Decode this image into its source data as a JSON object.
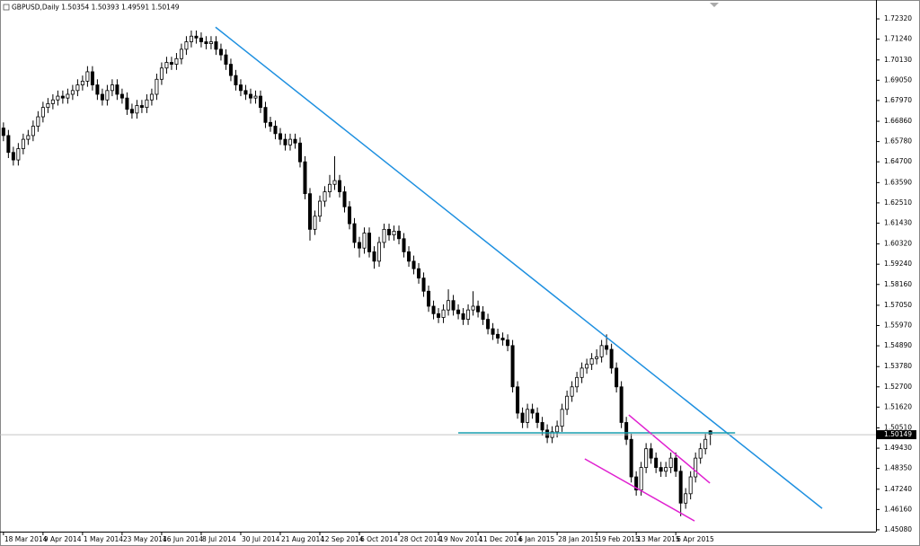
{
  "chart_data": {
    "type": "candlestick",
    "title": "GBPUSD,Daily",
    "categories": [
      "18 Mar 2014",
      null,
      null,
      null,
      null,
      null,
      null,
      null,
      "9 Apr 2014",
      null,
      null,
      null,
      null,
      null,
      null,
      null,
      "1 May 2014",
      null,
      null,
      null,
      null,
      null,
      null,
      null,
      "23 May 2014",
      null,
      null,
      null,
      null,
      null,
      null,
      null,
      "16 Jun 2014",
      null,
      null,
      null,
      null,
      null,
      null,
      null,
      "8 Jul 2014",
      null,
      null,
      null,
      null,
      null,
      null,
      null,
      "30 Jul 2014",
      null,
      null,
      null,
      null,
      null,
      null,
      null,
      "21 Aug 2014",
      null,
      null,
      null,
      null,
      null,
      null,
      null,
      "12 Sep 2014",
      null,
      null,
      null,
      null,
      null,
      null,
      null,
      "6 Oct 2014",
      null,
      null,
      null,
      null,
      null,
      null,
      null,
      "28 Oct 2014",
      null,
      null,
      null,
      null,
      null,
      null,
      null,
      "19 Nov 2014",
      null,
      null,
      null,
      null,
      null,
      null,
      null,
      "11 Dec 2014",
      null,
      null,
      null,
      null,
      null,
      null,
      null,
      "6 Jan 2015",
      null,
      null,
      null,
      null,
      null,
      null,
      null,
      "28 Jan 2015",
      null,
      null,
      null,
      null,
      null,
      null,
      null,
      "19 Feb 2015",
      null,
      null,
      null,
      null,
      null,
      null,
      null,
      "13 Mar 2015",
      null,
      null,
      null,
      null,
      null,
      null,
      null,
      "6 Apr 2015",
      null,
      null,
      null,
      null,
      null,
      null,
      null
    ],
    "open": [
      1.665,
      1.661,
      1.652,
      1.648,
      1.654,
      1.659,
      1.661,
      1.666,
      1.671,
      1.676,
      1.678,
      1.68,
      1.682,
      1.681,
      1.683,
      1.685,
      1.688,
      1.69,
      1.695,
      1.688,
      1.683,
      1.68,
      1.685,
      1.688,
      1.683,
      1.681,
      1.675,
      1.673,
      1.677,
      1.676,
      1.68,
      1.683,
      1.691,
      1.697,
      1.7,
      1.699,
      1.702,
      1.707,
      1.711,
      1.714,
      1.713,
      1.711,
      1.71,
      1.711,
      1.707,
      1.704,
      1.699,
      1.693,
      1.688,
      1.685,
      1.683,
      1.681,
      1.682,
      1.676,
      1.668,
      1.666,
      1.662,
      1.659,
      1.656,
      1.659,
      1.657,
      1.647,
      1.63,
      1.611,
      1.618,
      1.626,
      1.631,
      1.635,
      1.637,
      1.631,
      1.623,
      1.614,
      1.604,
      1.601,
      1.609,
      1.599,
      1.594,
      1.604,
      1.611,
      1.608,
      1.61,
      1.606,
      1.599,
      1.594,
      1.59,
      1.585,
      1.578,
      1.57,
      1.566,
      1.564,
      1.568,
      1.573,
      1.568,
      1.566,
      1.563,
      1.568,
      1.57,
      1.567,
      1.563,
      1.558,
      1.555,
      1.553,
      1.552,
      1.549,
      1.527,
      1.513,
      1.508,
      1.515,
      1.513,
      1.508,
      1.504,
      1.5,
      1.503,
      1.506,
      1.515,
      1.522,
      1.527,
      1.532,
      1.537,
      1.539,
      1.542,
      1.543,
      1.549,
      1.547,
      1.537,
      1.527,
      1.508,
      1.499,
      1.479,
      1.472,
      1.484,
      1.494,
      1.489,
      1.484,
      1.482,
      1.484,
      1.489,
      1.482,
      1.465,
      1.47,
      1.479,
      1.489,
      1.494,
      1.50354
    ],
    "high": [
      1.668,
      1.664,
      1.655,
      1.657,
      1.662,
      1.664,
      1.669,
      1.674,
      1.679,
      1.681,
      1.683,
      1.685,
      1.685,
      1.686,
      1.688,
      1.691,
      1.693,
      1.698,
      1.698,
      1.691,
      1.686,
      1.688,
      1.691,
      1.691,
      1.686,
      1.684,
      1.678,
      1.68,
      1.68,
      1.683,
      1.686,
      1.694,
      1.7,
      1.703,
      1.703,
      1.705,
      1.71,
      1.714,
      1.717,
      1.717,
      1.716,
      1.714,
      1.714,
      1.714,
      1.71,
      1.707,
      1.702,
      1.696,
      1.691,
      1.688,
      1.686,
      1.685,
      1.685,
      1.679,
      1.671,
      1.669,
      1.665,
      1.662,
      1.662,
      1.662,
      1.66,
      1.65,
      1.633,
      1.621,
      1.629,
      1.634,
      1.64,
      1.65,
      1.64,
      1.634,
      1.626,
      1.617,
      1.607,
      1.612,
      1.612,
      1.602,
      1.607,
      1.614,
      1.614,
      1.613,
      1.613,
      1.609,
      1.602,
      1.597,
      1.593,
      1.588,
      1.581,
      1.573,
      1.569,
      1.571,
      1.579,
      1.576,
      1.571,
      1.569,
      1.571,
      1.578,
      1.573,
      1.57,
      1.566,
      1.561,
      1.558,
      1.556,
      1.555,
      1.552,
      1.53,
      1.516,
      1.518,
      1.518,
      1.516,
      1.511,
      1.507,
      1.506,
      1.509,
      1.518,
      1.525,
      1.53,
      1.535,
      1.54,
      1.542,
      1.545,
      1.547,
      1.552,
      1.555,
      1.55,
      1.54,
      1.53,
      1.511,
      1.502,
      1.482,
      1.487,
      1.497,
      1.497,
      1.492,
      1.487,
      1.487,
      1.492,
      1.492,
      1.485,
      1.473,
      1.482,
      1.492,
      1.497,
      1.502,
      1.50393
    ],
    "low": [
      1.658,
      1.649,
      1.645,
      1.645,
      1.651,
      1.656,
      1.658,
      1.663,
      1.668,
      1.673,
      1.675,
      1.677,
      1.678,
      1.678,
      1.68,
      1.682,
      1.685,
      1.687,
      1.685,
      1.68,
      1.677,
      1.677,
      1.682,
      1.68,
      1.678,
      1.672,
      1.67,
      1.67,
      1.673,
      1.673,
      1.677,
      1.68,
      1.688,
      1.694,
      1.696,
      1.696,
      1.699,
      1.704,
      1.708,
      1.71,
      1.708,
      1.707,
      1.707,
      1.704,
      1.701,
      1.696,
      1.69,
      1.685,
      1.682,
      1.68,
      1.678,
      1.678,
      1.673,
      1.665,
      1.663,
      1.659,
      1.656,
      1.653,
      1.653,
      1.654,
      1.644,
      1.627,
      1.605,
      1.608,
      1.615,
      1.623,
      1.628,
      1.632,
      1.628,
      1.62,
      1.611,
      1.601,
      1.596,
      1.598,
      1.596,
      1.59,
      1.591,
      1.601,
      1.605,
      1.605,
      1.603,
      1.596,
      1.591,
      1.587,
      1.582,
      1.575,
      1.567,
      1.563,
      1.561,
      1.561,
      1.565,
      1.565,
      1.563,
      1.56,
      1.56,
      1.565,
      1.564,
      1.56,
      1.555,
      1.552,
      1.55,
      1.549,
      1.546,
      1.524,
      1.51,
      1.505,
      1.505,
      1.51,
      1.505,
      1.501,
      1.497,
      1.497,
      1.5,
      1.503,
      1.512,
      1.519,
      1.524,
      1.529,
      1.534,
      1.536,
      1.539,
      1.54,
      1.544,
      1.534,
      1.524,
      1.505,
      1.496,
      1.476,
      1.469,
      1.469,
      1.481,
      1.486,
      1.481,
      1.479,
      1.479,
      1.481,
      1.479,
      1.458,
      1.462,
      1.467,
      1.476,
      1.486,
      1.491,
      1.49591
    ],
    "close": [
      1.661,
      1.652,
      1.648,
      1.654,
      1.659,
      1.661,
      1.666,
      1.671,
      1.676,
      1.678,
      1.68,
      1.682,
      1.681,
      1.683,
      1.685,
      1.688,
      1.69,
      1.695,
      1.688,
      1.683,
      1.68,
      1.685,
      1.688,
      1.683,
      1.681,
      1.675,
      1.673,
      1.677,
      1.676,
      1.68,
      1.683,
      1.691,
      1.697,
      1.7,
      1.699,
      1.702,
      1.707,
      1.711,
      1.714,
      1.713,
      1.711,
      1.71,
      1.711,
      1.707,
      1.704,
      1.699,
      1.693,
      1.688,
      1.685,
      1.683,
      1.681,
      1.682,
      1.676,
      1.668,
      1.666,
      1.662,
      1.659,
      1.656,
      1.659,
      1.657,
      1.647,
      1.63,
      1.611,
      1.618,
      1.626,
      1.631,
      1.635,
      1.637,
      1.631,
      1.623,
      1.614,
      1.604,
      1.601,
      1.609,
      1.599,
      1.594,
      1.604,
      1.611,
      1.608,
      1.61,
      1.606,
      1.599,
      1.594,
      1.59,
      1.585,
      1.578,
      1.57,
      1.566,
      1.564,
      1.568,
      1.573,
      1.568,
      1.566,
      1.563,
      1.568,
      1.57,
      1.567,
      1.563,
      1.558,
      1.555,
      1.553,
      1.552,
      1.549,
      1.527,
      1.513,
      1.508,
      1.515,
      1.513,
      1.508,
      1.504,
      1.5,
      1.503,
      1.506,
      1.515,
      1.522,
      1.527,
      1.532,
      1.537,
      1.539,
      1.542,
      1.543,
      1.549,
      1.547,
      1.537,
      1.527,
      1.508,
      1.499,
      1.479,
      1.472,
      1.484,
      1.494,
      1.489,
      1.484,
      1.482,
      1.484,
      1.489,
      1.482,
      1.465,
      1.47,
      1.479,
      1.489,
      1.494,
      1.499,
      1.50149
    ],
    "up_color": "#ffffff",
    "down_color": "#000000",
    "xlim": [
      -0.7,
      176.5
    ],
    "ylim": [
      1.4498,
      1.7304
    ],
    "yticks": [
      {
        "value": 1.7232,
        "label": "1.72320"
      },
      {
        "value": 1.7124,
        "label": "1.71240"
      },
      {
        "value": 1.7013,
        "label": "1.70130"
      },
      {
        "value": 1.6905,
        "label": "1.69050"
      },
      {
        "value": 1.6797,
        "label": "1.67970"
      },
      {
        "value": 1.6686,
        "label": "1.66860"
      },
      {
        "value": 1.6578,
        "label": "1.65780"
      },
      {
        "value": 1.647,
        "label": "1.64700"
      },
      {
        "value": 1.6359,
        "label": "1.63590"
      },
      {
        "value": 1.6251,
        "label": "1.62510"
      },
      {
        "value": 1.6143,
        "label": "1.61430"
      },
      {
        "value": 1.6032,
        "label": "1.60320"
      },
      {
        "value": 1.5924,
        "label": "1.59240"
      },
      {
        "value": 1.5816,
        "label": "1.58160"
      },
      {
        "value": 1.5705,
        "label": "1.57050"
      },
      {
        "value": 1.5597,
        "label": "1.55970"
      },
      {
        "value": 1.5489,
        "label": "1.54890"
      },
      {
        "value": 1.5378,
        "label": "1.53780"
      },
      {
        "value": 1.527,
        "label": "1.52700"
      },
      {
        "value": 1.5162,
        "label": "1.51620"
      },
      {
        "value": 1.5051,
        "label": "1.50510"
      },
      {
        "value": 1.4943,
        "label": "1.49430"
      },
      {
        "value": 1.4835,
        "label": "1.48350"
      },
      {
        "value": 1.4724,
        "label": "1.47240"
      },
      {
        "value": 1.4616,
        "label": "1.46160"
      },
      {
        "value": 1.4508,
        "label": "1.45080"
      }
    ],
    "grid": false,
    "trendlines": [
      {
        "color": "#1e90e0",
        "from": [
          42.9,
          1.7188
        ],
        "to": [
          165.6,
          1.4622
        ]
      },
      {
        "color": "#1aa0b0",
        "from": [
          92,
          1.5025
        ],
        "to": [
          148,
          1.5025
        ]
      },
      {
        "color": "#e020d0",
        "from": [
          126.5,
          1.512
        ],
        "to": [
          142.9,
          1.4757
        ]
      },
      {
        "color": "#e020d0",
        "from": [
          117.6,
          1.4886
        ],
        "to": [
          139.8,
          1.4555
        ]
      }
    ]
  }
}
